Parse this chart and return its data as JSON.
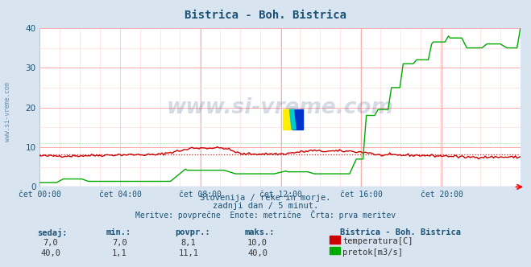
{
  "title": "Bistrica - Boh. Bistrica",
  "title_color": "#1a5276",
  "bg_color": "#d8e4f0",
  "plot_bg_color": "#ffffff",
  "grid_color_major": "#ffaaaa",
  "grid_color_minor": "#ffdddd",
  "xlabel_ticks": [
    "čet 00:00",
    "čet 04:00",
    "čet 08:00",
    "čet 12:00",
    "čet 16:00",
    "čet 20:00"
  ],
  "ylabel_ticks": [
    0,
    10,
    20,
    30,
    40
  ],
  "ylim": [
    0,
    40
  ],
  "xlim": [
    0,
    287
  ],
  "watermark": "www.si-vreme.com",
  "watermark_color": "#1a3a6e",
  "watermark_alpha": 0.18,
  "subtitle1": "Slovenija / reke in morje.",
  "subtitle2": "zadnji dan / 5 minut.",
  "subtitle3": "Meritve: povprečne  Enote: metrične  Črta: prva meritev",
  "subtitle_color": "#1a5276",
  "legend_title": "Bistrica - Boh. Bistrica",
  "legend_color": "#1a5276",
  "temp_color": "#cc0000",
  "flow_color": "#00aa00",
  "temp_avg": 8.1,
  "flow_avg": 11.1,
  "footer_labels": [
    "sedaj:",
    "min.:",
    "povpr.:",
    "maks.:"
  ],
  "footer_temp": [
    "7,0",
    "7,0",
    "8,1",
    "10,0"
  ],
  "footer_flow": [
    "40,0",
    "1,1",
    "11,1",
    "40,0"
  ],
  "footer_label_temp": "temperatura[C]",
  "footer_label_flow": "pretok[m3/s]",
  "side_label": "www.si-vreme.com",
  "side_label_color": "#1a5276"
}
